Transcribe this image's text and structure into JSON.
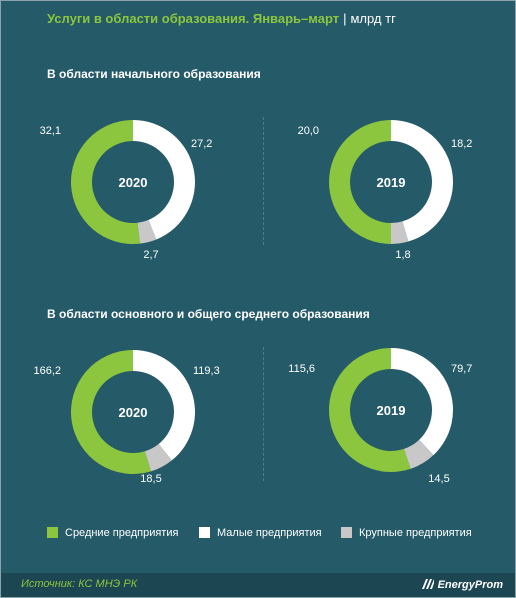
{
  "header": {
    "title": "Услуги в области образования. Январь–март",
    "separator": "|",
    "unit": "млрд тг"
  },
  "sections": [
    {
      "title": "В области  начального  образования"
    },
    {
      "title": "В области  основного  и общего среднего образования"
    }
  ],
  "legend": {
    "items": [
      {
        "label": "Средние предприятия",
        "color": "#8cc63f"
      },
      {
        "label": "Малые предприятия",
        "color": "#ffffff"
      },
      {
        "label": "Крупные предприятия",
        "color": "#c8c8c8"
      }
    ]
  },
  "footer": {
    "source": "Источник: КС МНЭ РК",
    "brand": "EnergyProm"
  },
  "chart_data": [
    {
      "type": "pie",
      "variant": "donut",
      "group": "В области  начального  образования",
      "center_label": "2020",
      "slices": [
        {
          "label": "Малые предприятия",
          "value": 27.2,
          "display": "27,2",
          "color": "#ffffff"
        },
        {
          "label": "Крупные предприятия",
          "value": 2.7,
          "display": "2,7",
          "color": "#c8c8c8"
        },
        {
          "label": "Средние предприятия",
          "value": 32.1,
          "display": "32,1",
          "color": "#8cc63f"
        }
      ]
    },
    {
      "type": "pie",
      "variant": "donut",
      "group": "В области  начального  образования",
      "center_label": "2019",
      "slices": [
        {
          "label": "Малые предприятия",
          "value": 18.2,
          "display": "18,2",
          "color": "#ffffff"
        },
        {
          "label": "Крупные предприятия",
          "value": 1.8,
          "display": "1,8",
          "color": "#c8c8c8"
        },
        {
          "label": "Средние предприятия",
          "value": 20.0,
          "display": "20,0",
          "color": "#8cc63f"
        }
      ]
    },
    {
      "type": "pie",
      "variant": "donut",
      "group": "В области  основного  и общего среднего образования",
      "center_label": "2020",
      "slices": [
        {
          "label": "Малые предприятия",
          "value": 119.3,
          "display": "119,3",
          "color": "#ffffff"
        },
        {
          "label": "Крупные предприятия",
          "value": 18.5,
          "display": "18,5",
          "color": "#c8c8c8"
        },
        {
          "label": "Средние предприятия",
          "value": 166.2,
          "display": "166,2",
          "color": "#8cc63f"
        }
      ]
    },
    {
      "type": "pie",
      "variant": "donut",
      "group": "В области  основного  и общего среднего образования",
      "center_label": "2019",
      "slices": [
        {
          "label": "Малые предприятия",
          "value": 79.7,
          "display": "79,7",
          "color": "#ffffff"
        },
        {
          "label": "Крупные предприятия",
          "value": 14.5,
          "display": "14,5",
          "color": "#c8c8c8"
        },
        {
          "label": "Средние предприятия",
          "value": 115.6,
          "display": "115,6",
          "color": "#8cc63f"
        }
      ]
    }
  ]
}
